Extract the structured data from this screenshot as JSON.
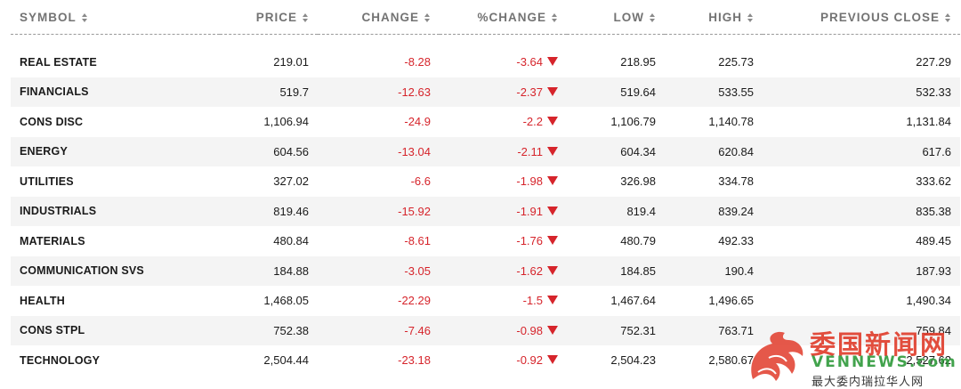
{
  "table": {
    "headers": [
      {
        "label": "SYMBOL",
        "align": "l"
      },
      {
        "label": "PRICE",
        "align": "r"
      },
      {
        "label": "CHANGE",
        "align": "r"
      },
      {
        "label": "%CHANGE",
        "align": "r"
      },
      {
        "label": "LOW",
        "align": "r"
      },
      {
        "label": "HIGH",
        "align": "r"
      },
      {
        "label": "PREVIOUS CLOSE",
        "align": "r"
      }
    ],
    "rows": [
      {
        "symbol": "REAL ESTATE",
        "price": "219.01",
        "change": "-8.28",
        "pct": "-3.64",
        "low": "218.95",
        "high": "225.73",
        "prev": "227.29"
      },
      {
        "symbol": "FINANCIALS",
        "price": "519.7",
        "change": "-12.63",
        "pct": "-2.37",
        "low": "519.64",
        "high": "533.55",
        "prev": "532.33"
      },
      {
        "symbol": "CONS DISC",
        "price": "1,106.94",
        "change": "-24.9",
        "pct": "-2.2",
        "low": "1,106.79",
        "high": "1,140.78",
        "prev": "1,131.84"
      },
      {
        "symbol": "ENERGY",
        "price": "604.56",
        "change": "-13.04",
        "pct": "-2.11",
        "low": "604.34",
        "high": "620.84",
        "prev": "617.6"
      },
      {
        "symbol": "UTILITIES",
        "price": "327.02",
        "change": "-6.6",
        "pct": "-1.98",
        "low": "326.98",
        "high": "334.78",
        "prev": "333.62"
      },
      {
        "symbol": "INDUSTRIALS",
        "price": "819.46",
        "change": "-15.92",
        "pct": "-1.91",
        "low": "819.4",
        "high": "839.24",
        "prev": "835.38"
      },
      {
        "symbol": "MATERIALS",
        "price": "480.84",
        "change": "-8.61",
        "pct": "-1.76",
        "low": "480.79",
        "high": "492.33",
        "prev": "489.45"
      },
      {
        "symbol": "COMMUNICATION SVS",
        "price": "184.88",
        "change": "-3.05",
        "pct": "-1.62",
        "low": "184.85",
        "high": "190.4",
        "prev": "187.93"
      },
      {
        "symbol": "HEALTH",
        "price": "1,468.05",
        "change": "-22.29",
        "pct": "-1.5",
        "low": "1,467.64",
        "high": "1,496.65",
        "prev": "1,490.34"
      },
      {
        "symbol": "CONS STPL",
        "price": "752.38",
        "change": "-7.46",
        "pct": "-0.98",
        "low": "752.31",
        "high": "763.71",
        "prev": "759.84"
      },
      {
        "symbol": "TECHNOLOGY",
        "price": "2,504.44",
        "change": "-23.18",
        "pct": "-0.92",
        "low": "2,504.23",
        "high": "2,580.67",
        "prev": "2,527.62"
      }
    ]
  },
  "colors": {
    "negative": "#d6242b",
    "header_text": "#737373",
    "stripe": "#f4f4f4"
  },
  "icons": {
    "sort": "sort-arrows-icon",
    "down": "down-triangle-icon"
  },
  "watermark": {
    "cn": "委国新闻网",
    "en": "VENNEWS.com",
    "sub": "最大委内瑞拉华人网"
  }
}
